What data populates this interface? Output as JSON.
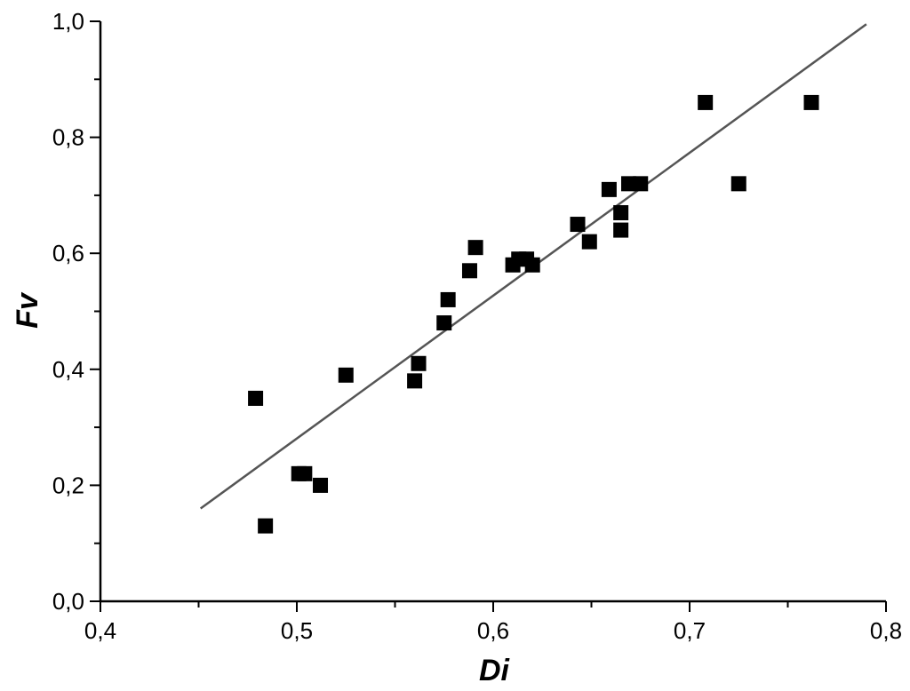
{
  "chart_data": {
    "type": "scatter",
    "title": "",
    "xlabel": "Di",
    "ylabel": "Fv",
    "xlim": [
      0.4,
      0.8
    ],
    "ylim": [
      0.0,
      1.0
    ],
    "x_ticks": [
      0.4,
      0.5,
      0.6,
      0.7,
      0.8
    ],
    "y_ticks": [
      0.0,
      0.2,
      0.4,
      0.6,
      0.8,
      1.0
    ],
    "x_tick_labels": [
      "0,4",
      "0,5",
      "0,6",
      "0,7",
      "0,8"
    ],
    "y_tick_labels": [
      "0,0",
      "0,2",
      "0,4",
      "0,6",
      "0,8",
      "1,0"
    ],
    "grid": false,
    "marker_color": "#000000",
    "line_color": "#555555",
    "series": [
      {
        "values": [
          {
            "x": 0.479,
            "y": 0.35
          },
          {
            "x": 0.484,
            "y": 0.13
          },
          {
            "x": 0.501,
            "y": 0.22
          },
          {
            "x": 0.504,
            "y": 0.22
          },
          {
            "x": 0.512,
            "y": 0.2
          },
          {
            "x": 0.525,
            "y": 0.39
          },
          {
            "x": 0.56,
            "y": 0.38
          },
          {
            "x": 0.562,
            "y": 0.41
          },
          {
            "x": 0.575,
            "y": 0.48
          },
          {
            "x": 0.577,
            "y": 0.52
          },
          {
            "x": 0.588,
            "y": 0.57
          },
          {
            "x": 0.591,
            "y": 0.61
          },
          {
            "x": 0.61,
            "y": 0.58
          },
          {
            "x": 0.613,
            "y": 0.59
          },
          {
            "x": 0.617,
            "y": 0.59
          },
          {
            "x": 0.62,
            "y": 0.58
          },
          {
            "x": 0.643,
            "y": 0.65
          },
          {
            "x": 0.649,
            "y": 0.62
          },
          {
            "x": 0.659,
            "y": 0.71
          },
          {
            "x": 0.665,
            "y": 0.67
          },
          {
            "x": 0.665,
            "y": 0.64
          },
          {
            "x": 0.669,
            "y": 0.72
          },
          {
            "x": 0.675,
            "y": 0.72
          },
          {
            "x": 0.708,
            "y": 0.86
          },
          {
            "x": 0.725,
            "y": 0.72
          },
          {
            "x": 0.762,
            "y": 0.86
          }
        ]
      }
    ],
    "fit_line": {
      "points": [
        {
          "x": 0.451,
          "y": 0.16
        },
        {
          "x": 0.79,
          "y": 0.995
        }
      ]
    }
  }
}
